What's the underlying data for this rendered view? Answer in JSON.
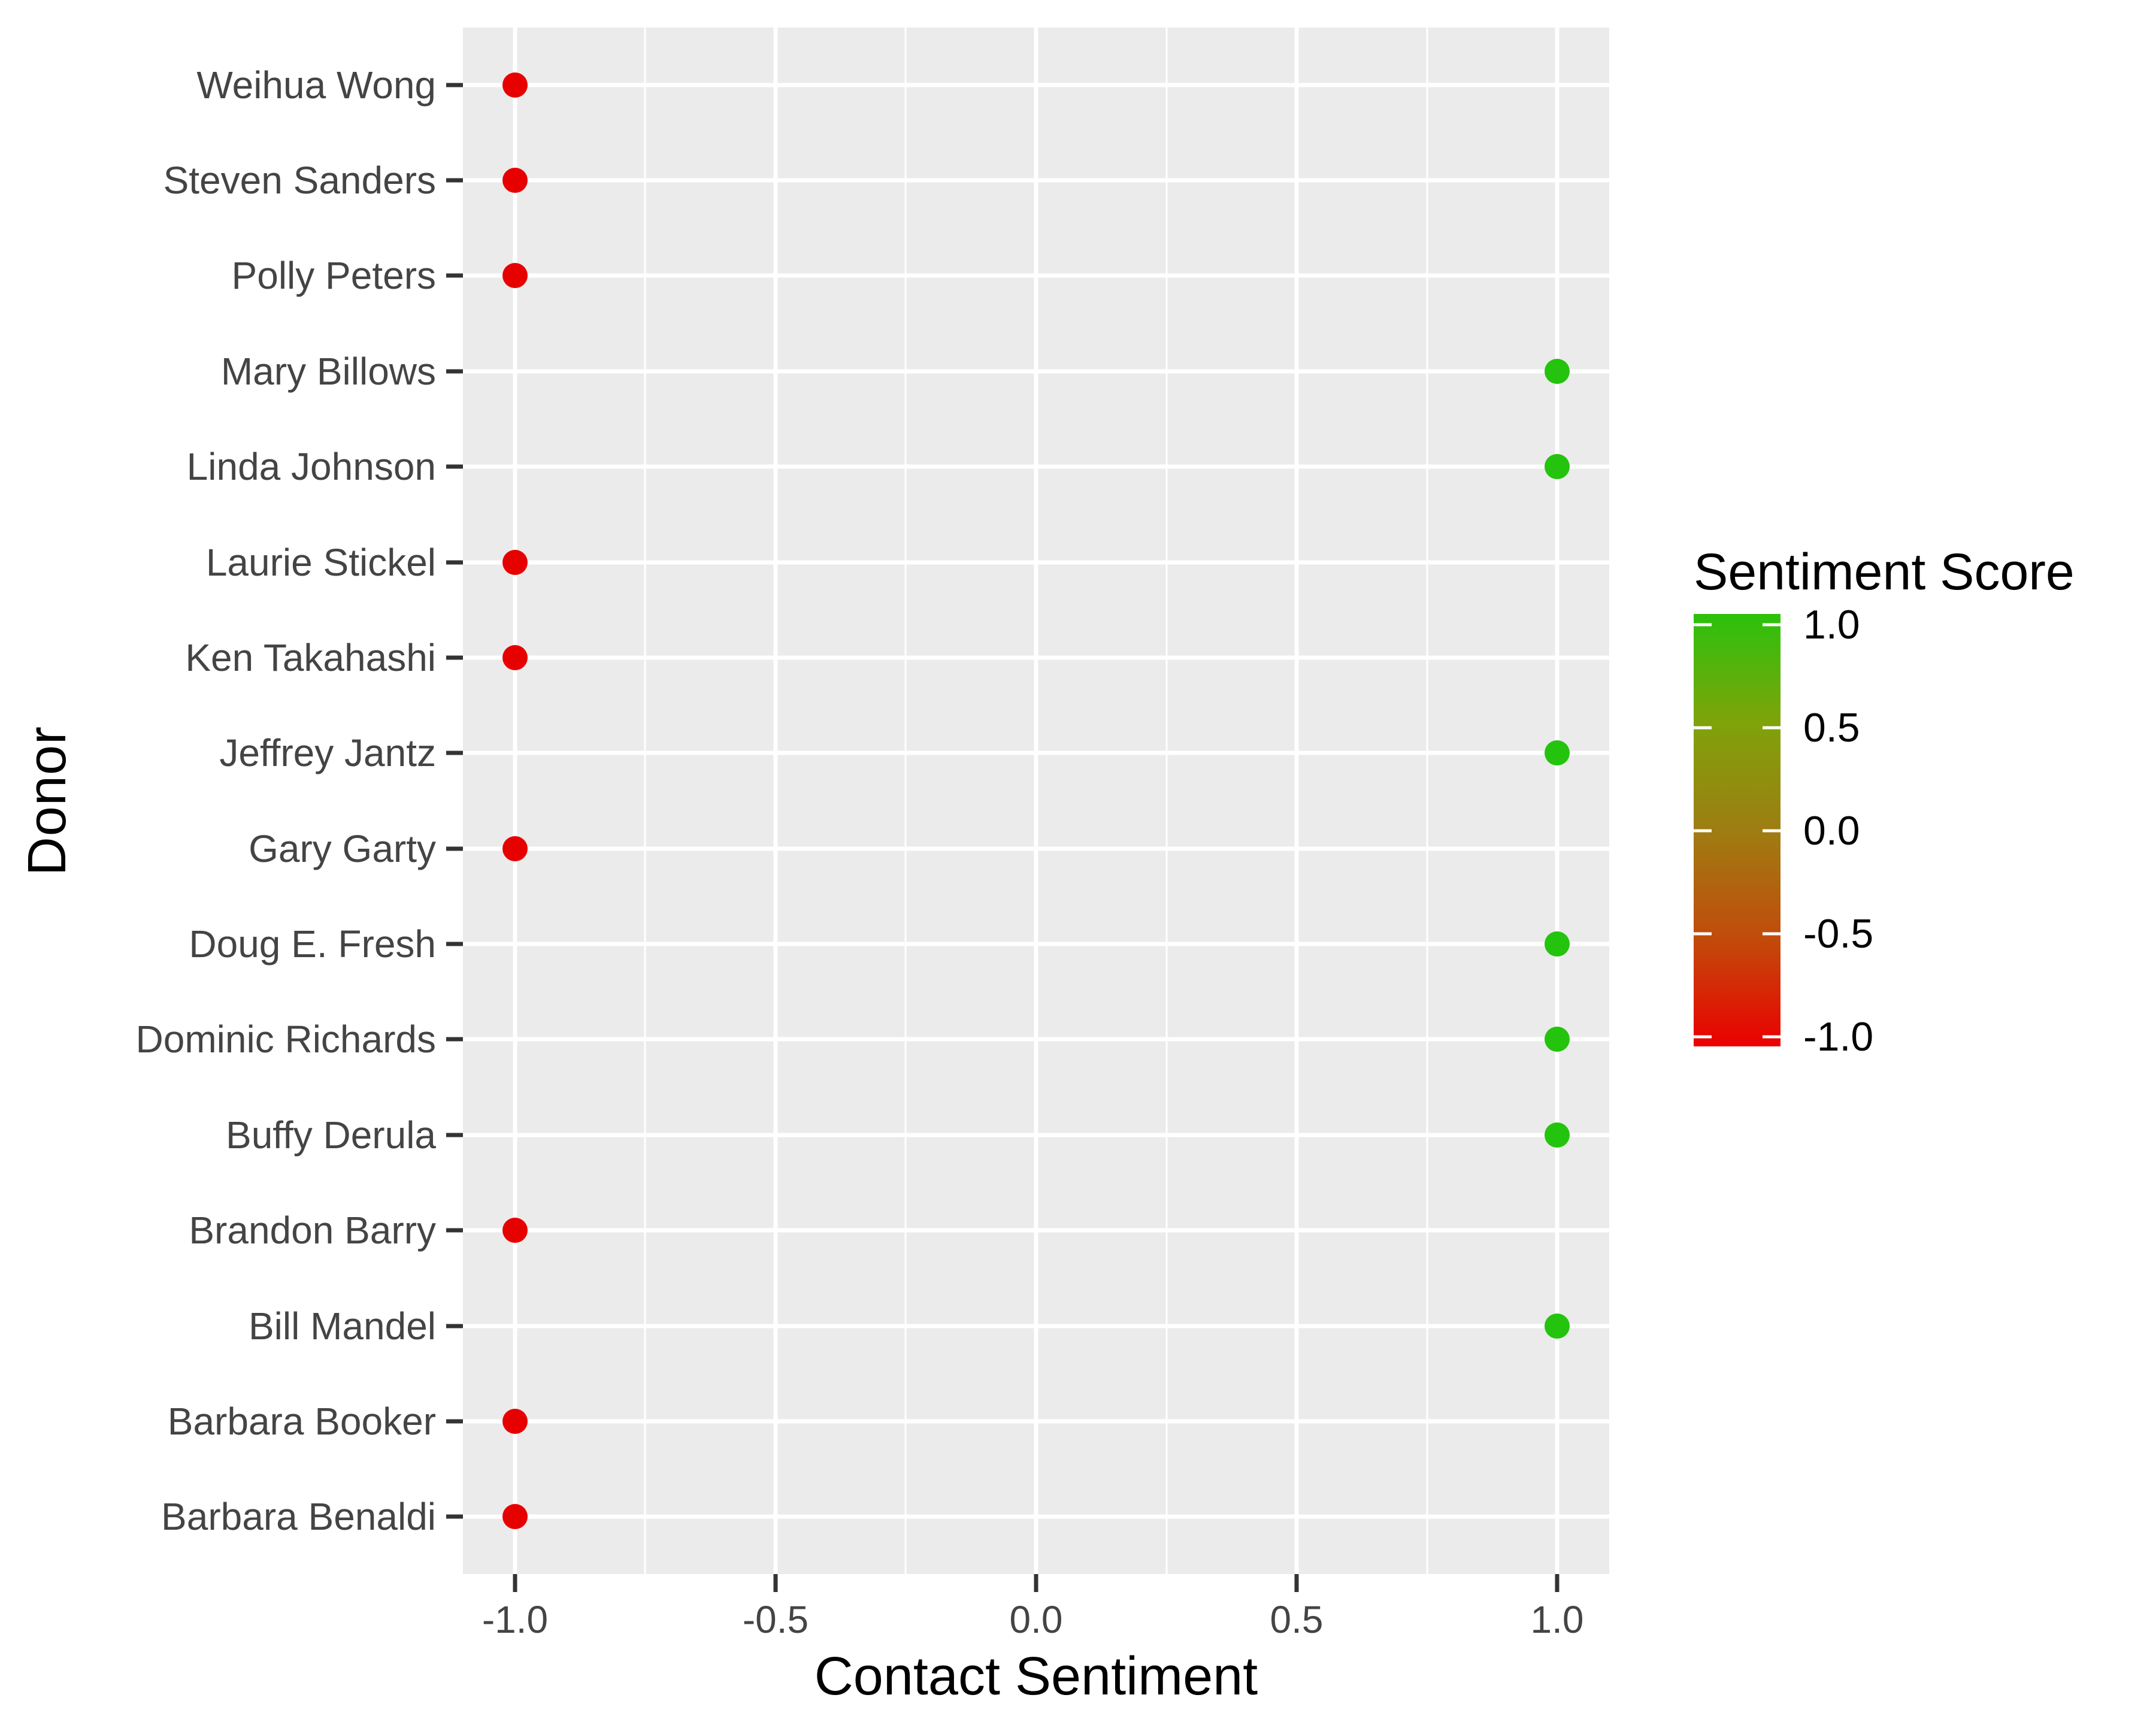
{
  "chart_data": {
    "type": "scatter",
    "title": "",
    "xlabel": "Contact Sentiment",
    "ylabel": "Donor",
    "xlim": [
      -1.1,
      1.1
    ],
    "x_ticks": [
      {
        "value": -1.0,
        "label": "-1.0"
      },
      {
        "value": -0.5,
        "label": "-0.5"
      },
      {
        "value": 0.0,
        "label": "0.0"
      },
      {
        "value": 0.5,
        "label": "0.5"
      },
      {
        "value": 1.0,
        "label": "1.0"
      }
    ],
    "x_minor_ticks": [
      -0.75,
      -0.25,
      0.25,
      0.75
    ],
    "categories": [
      "Weihua Wong",
      "Steven Sanders",
      "Polly Peters",
      "Mary Billows",
      "Linda Johnson",
      "Laurie Stickel",
      "Ken Takahashi",
      "Jeffrey Jantz",
      "Gary Garty",
      "Doug E. Fresh",
      "Dominic Richards",
      "Buffy Derula",
      "Brandon Barry",
      "Bill Mandel",
      "Barbara Booker",
      "Barbara Benaldi"
    ],
    "values": [
      -1,
      -1,
      -1,
      1,
      1,
      -1,
      -1,
      1,
      -1,
      1,
      1,
      1,
      -1,
      1,
      -1,
      -1
    ],
    "grid": "on",
    "legend_position": "right"
  },
  "colors": {
    "point_negative": "#E70000",
    "point_positive": "#24C30D",
    "panel_background": "#EBEBEB",
    "gridline": "#FFFFFF",
    "tick_mark": "#333333",
    "axis_text": "#444444"
  },
  "legend": {
    "title": "Sentiment Score",
    "ticks": [
      {
        "value": 1.0,
        "label": "1.0"
      },
      {
        "value": 0.5,
        "label": "0.5"
      },
      {
        "value": 0.0,
        "label": "0.0"
      },
      {
        "value": -0.5,
        "label": "-0.5"
      },
      {
        "value": -1.0,
        "label": "-1.0"
      }
    ],
    "gradient_top": "#2BC20C",
    "gradient_mid": "#9E7D12",
    "gradient_bottom": "#EB0000"
  }
}
